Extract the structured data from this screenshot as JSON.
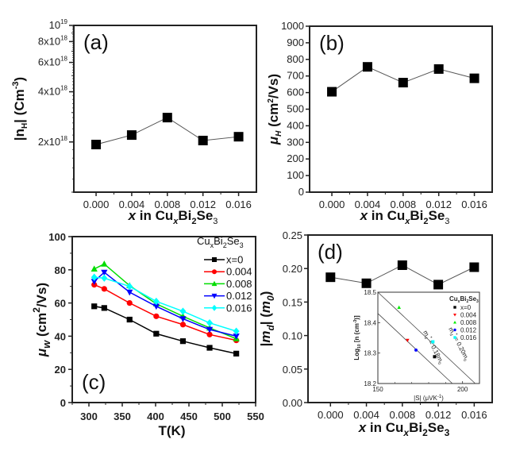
{
  "chart_data": [
    {
      "panel": "a",
      "type": "line",
      "panel_label": "(a)",
      "xlabel": "x in CuxBi2Se3",
      "ylabel": "|nH| (Cm-3)",
      "yscale": "log",
      "ylim": [
        1e+18,
        1e+19
      ],
      "xlim": [
        -0.0025,
        0.018
      ],
      "xticks": [
        "0.000",
        "0.004",
        "0.008",
        "0.012",
        "0.016"
      ],
      "yticks": [
        {
          "value": 2e+18,
          "label": "2x10",
          "exp": "18"
        },
        {
          "value": 4e+18,
          "label": "4x10",
          "exp": "18"
        },
        {
          "value": 6e+18,
          "label": "6x10",
          "exp": "18"
        },
        {
          "value": 8e+18,
          "label": "8x10",
          "exp": "18"
        },
        {
          "value": 1e+19,
          "label": "10",
          "exp": "19"
        }
      ],
      "x": [
        0.0,
        0.004,
        0.008,
        0.012,
        0.016
      ],
      "values": [
        1.93e+18,
        2.2e+18,
        2.8e+18,
        2.04e+18,
        2.15e+18
      ],
      "marker": "square",
      "color": "#000000"
    },
    {
      "panel": "b",
      "type": "line",
      "panel_label": "(b)",
      "xlabel": "x in CuxBi2Se3",
      "ylabel": "μH (cm2/Vs)",
      "ylim": [
        0,
        1000
      ],
      "xlim": [
        -0.0025,
        0.018
      ],
      "xticks": [
        "0.000",
        "0.004",
        "0.008",
        "0.012",
        "0.016"
      ],
      "yticks": [
        "0",
        "100",
        "200",
        "300",
        "400",
        "500",
        "600",
        "700",
        "800",
        "900",
        "1000"
      ],
      "x": [
        0.0,
        0.004,
        0.008,
        0.012,
        0.016
      ],
      "values": [
        605,
        755,
        660,
        742,
        686
      ],
      "marker": "square",
      "color": "#000000"
    },
    {
      "panel": "c",
      "type": "line",
      "panel_label": "(c)",
      "xlabel": "T(K)",
      "ylabel": "μw (cm2/Vs)",
      "xlim": [
        275,
        550
      ],
      "ylim": [
        0,
        100
      ],
      "xticks": [
        "300",
        "350",
        "400",
        "450",
        "500",
        "550"
      ],
      "yticks": [
        "0",
        "20",
        "40",
        "60",
        "80",
        "100"
      ],
      "legend_title": "CuxBi2Se3",
      "legend_position": "top-right",
      "x": [
        308,
        323,
        361,
        401,
        441,
        481,
        521
      ],
      "series": [
        {
          "name": "x=0",
          "color": "#000000",
          "marker": "square",
          "values": [
            58,
            57,
            50,
            41.5,
            37,
            33,
            29.5
          ]
        },
        {
          "name": "0.004",
          "color": "#ff0000",
          "marker": "circle",
          "values": [
            71,
            68.5,
            60,
            52,
            47,
            41,
            37.5
          ]
        },
        {
          "name": "0.008",
          "color": "#00dd00",
          "marker": "triangle-up",
          "values": [
            80.5,
            83.5,
            70.5,
            59.5,
            52,
            45,
            38.5
          ]
        },
        {
          "name": "0.012",
          "color": "#0000ff",
          "marker": "triangle-down",
          "values": [
            73,
            78.5,
            66.5,
            58,
            50.5,
            44,
            40
          ]
        },
        {
          "name": "0.016",
          "color": "#00ffff",
          "marker": "diamond",
          "values": [
            75.5,
            75,
            70,
            61,
            55,
            48,
            43
          ]
        }
      ]
    },
    {
      "panel": "d",
      "type": "line",
      "panel_label": "(d)",
      "xlabel": "x in CuxBi2Se3",
      "ylabel": "|md| (m0)",
      "ylim": [
        0,
        0.25
      ],
      "xlim": [
        -0.0025,
        0.018
      ],
      "xticks": [
        "0.000",
        "0.004",
        "0.008",
        "0.012",
        "0.016"
      ],
      "yticks": [
        "0.00",
        "0.05",
        "0.10",
        "0.15",
        "0.20",
        "0.25"
      ],
      "x": [
        0.0,
        0.004,
        0.008,
        0.012,
        0.016
      ],
      "values": [
        0.187,
        0.178,
        0.205,
        0.176,
        0.202
      ],
      "marker": "square",
      "color": "#000000",
      "inset": {
        "type": "scatter",
        "xlabel": "|S| (μVK-1)",
        "ylabel": "Log10 [n (cm-3)]",
        "xlim": [
          150,
          210
        ],
        "ylim": [
          18.2,
          18.5
        ],
        "xticks": [
          "150",
          "200"
        ],
        "yticks": [
          "18.2",
          "18.3",
          "18.4",
          "18.5"
        ],
        "legend_title": "CuxBi2Se3",
        "points": [
          {
            "name": "x=0",
            "color": "#000000",
            "x": 183.5,
            "y": 18.288
          },
          {
            "name": "0.004",
            "color": "#ff0000",
            "x": 167.5,
            "y": 18.342
          },
          {
            "name": "0.008",
            "color": "#00ee00",
            "x": 162.5,
            "y": 18.45
          },
          {
            "name": "0.012",
            "color": "#0000ff",
            "x": 172.5,
            "y": 18.31
          },
          {
            "name": "0.016",
            "color": "#00ffff",
            "x": 182.5,
            "y": 18.337
          }
        ],
        "lines": [
          {
            "label": "md* = 0.18m0",
            "x1": 150,
            "y1": 18.43,
            "x2": 194,
            "y2": 18.2
          },
          {
            "label": "md* = 0.20m0",
            "x1": 150,
            "y1": 18.5,
            "x2": 207.5,
            "y2": 18.2
          }
        ]
      }
    }
  ]
}
